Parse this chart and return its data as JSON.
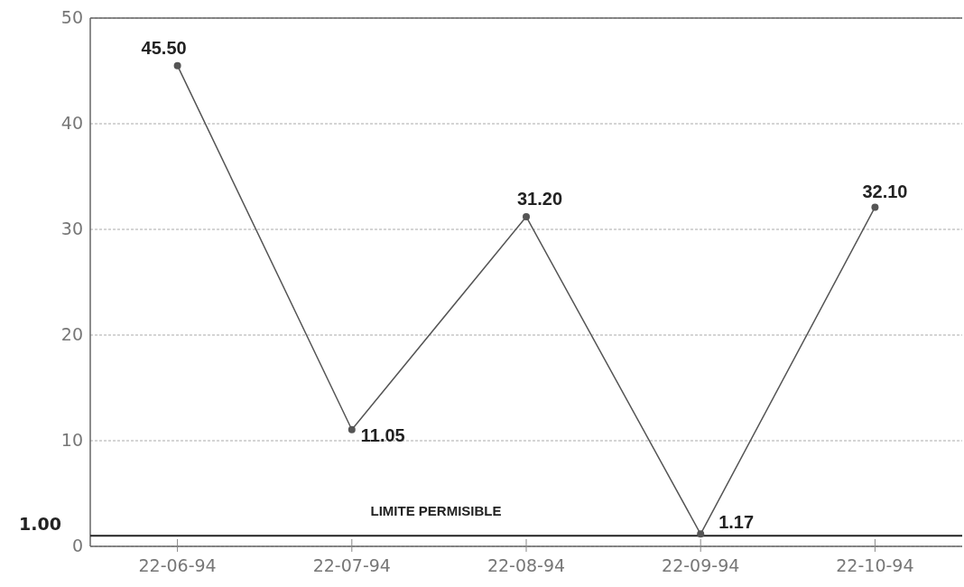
{
  "chart_data": {
    "type": "line",
    "categories": [
      "22-06-94",
      "22-07-94",
      "22-08-94",
      "22-09-94",
      "22-10-94"
    ],
    "series": [
      {
        "color": "#555555",
        "values": [
          45.5,
          11.05,
          31.2,
          1.17,
          32.1
        ],
        "value_labels": [
          "45.50",
          "11.05",
          "31.20",
          "1.17",
          "32.10"
        ]
      }
    ],
    "ylim": [
      0,
      50
    ],
    "yticks": [
      0,
      10,
      20,
      30,
      40,
      50
    ],
    "annotations": [
      "1.00"
    ],
    "grid": "y",
    "marker": "circle",
    "ref_lines": [
      {
        "axis": "y",
        "value": 1,
        "label": "LIMITE PERMISIBLE",
        "color": "#222222"
      }
    ]
  }
}
